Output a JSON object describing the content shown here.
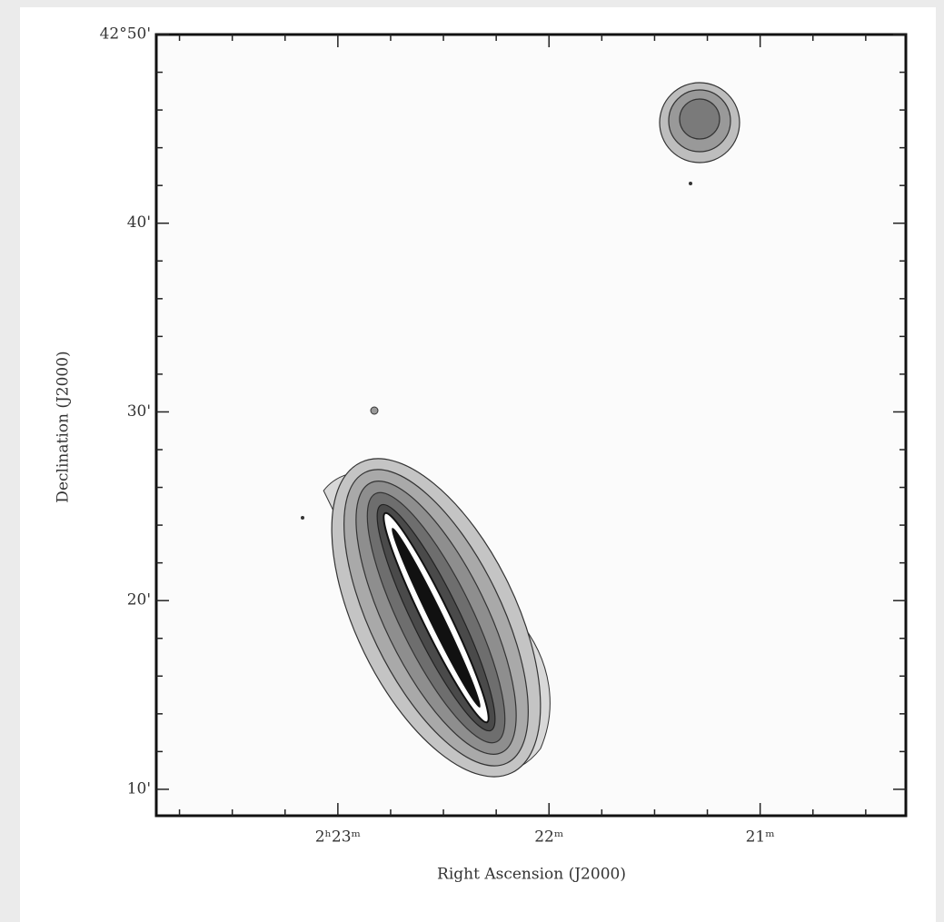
{
  "chart_data": {
    "type": "contour",
    "xlabel": "Right Ascension (J2000)",
    "ylabel": "Declination (J2000)",
    "xlim": [
      23.86,
      20.31
    ],
    "ylim": [
      8.6,
      50
    ],
    "xticks": [
      {
        "value": 23,
        "label": "2ʰ23ᵐ"
      },
      {
        "value": 22,
        "label": "22ᵐ"
      },
      {
        "value": 21,
        "label": "21ᵐ"
      }
    ],
    "yticks": [
      {
        "value": 50,
        "label": "42°50'"
      },
      {
        "value": 40,
        "label": "40'"
      },
      {
        "value": 30,
        "label": "30'"
      },
      {
        "value": 20,
        "label": "20'"
      },
      {
        "value": 10,
        "label": "10'"
      }
    ],
    "minor_xticks": [
      23.75,
      23.5,
      23.25,
      22.75,
      22.5,
      22.25,
      21.75,
      21.5,
      21.25,
      20.75,
      20.5
    ],
    "minor_yticks": [
      12,
      14,
      16,
      18,
      22,
      24,
      26,
      28,
      32,
      34,
      36,
      38,
      42,
      44,
      46,
      48
    ],
    "grid": false
  }
}
